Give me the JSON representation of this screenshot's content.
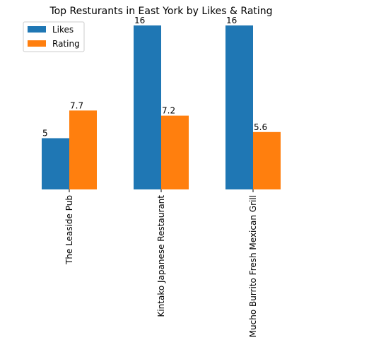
{
  "chart_data": {
    "type": "bar",
    "title": "Top Resturants in East York by Likes & Rating",
    "categories": [
      "The Leaside Pub",
      "Kintako Japanese Restaurant",
      "Mucho Burrito Fresh Mexican Grill"
    ],
    "series": [
      {
        "name": "Likes",
        "values": [
          5,
          16,
          16
        ],
        "color": "#1f77b4"
      },
      {
        "name": "Rating",
        "values": [
          7.7,
          7.2,
          5.6
        ],
        "color": "#ff7f0e"
      }
    ],
    "data_labels": [
      [
        "5",
        "16",
        "16"
      ],
      [
        "7.7",
        "7.2",
        "5.6"
      ]
    ],
    "ylim": [
      0,
      16
    ],
    "legend_position": "top-left",
    "grid": false,
    "y_axis_visible": false
  }
}
